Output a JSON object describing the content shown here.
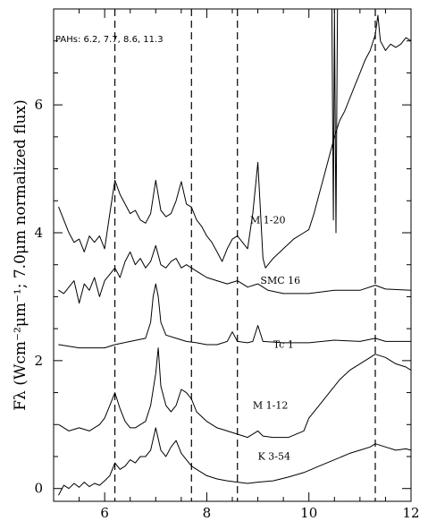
{
  "chart_data": {
    "type": "line",
    "title": "",
    "xlabel": "",
    "ylabel": "Fλ (Wcm⁻²μm⁻¹; 7.0μm normalized flux)",
    "xlim": [
      5.0,
      12.0
    ],
    "ylim": [
      -0.2,
      7.5
    ],
    "x_ticks": [
      6,
      8,
      10,
      12
    ],
    "y_ticks": [
      0,
      2,
      4,
      6
    ],
    "grid": false,
    "annotation": "PAHs: 6.2, 7.7, 8.6, 11.3",
    "vlines": [
      6.2,
      7.7,
      8.6,
      11.3
    ],
    "series": [
      {
        "name": "M 1-20",
        "label_pos": [
          8.85,
          4.15
        ],
        "points": [
          [
            5.1,
            4.4
          ],
          [
            5.2,
            4.2
          ],
          [
            5.3,
            4.0
          ],
          [
            5.4,
            3.85
          ],
          [
            5.5,
            3.9
          ],
          [
            5.6,
            3.7
          ],
          [
            5.7,
            3.95
          ],
          [
            5.8,
            3.85
          ],
          [
            5.9,
            3.95
          ],
          [
            6.0,
            3.75
          ],
          [
            6.1,
            4.3
          ],
          [
            6.2,
            4.82
          ],
          [
            6.3,
            4.6
          ],
          [
            6.4,
            4.45
          ],
          [
            6.5,
            4.3
          ],
          [
            6.6,
            4.35
          ],
          [
            6.7,
            4.2
          ],
          [
            6.8,
            4.15
          ],
          [
            6.9,
            4.3
          ],
          [
            7.0,
            4.82
          ],
          [
            7.1,
            4.35
          ],
          [
            7.2,
            4.25
          ],
          [
            7.3,
            4.3
          ],
          [
            7.4,
            4.5
          ],
          [
            7.5,
            4.8
          ],
          [
            7.6,
            4.45
          ],
          [
            7.7,
            4.4
          ],
          [
            7.8,
            4.2
          ],
          [
            7.9,
            4.1
          ],
          [
            8.0,
            3.95
          ],
          [
            8.1,
            3.85
          ],
          [
            8.2,
            3.7
          ],
          [
            8.3,
            3.55
          ],
          [
            8.4,
            3.75
          ],
          [
            8.5,
            3.9
          ],
          [
            8.6,
            3.95
          ],
          [
            8.7,
            3.85
          ],
          [
            8.8,
            3.75
          ],
          [
            8.9,
            4.3
          ],
          [
            9.0,
            5.1
          ],
          [
            9.1,
            3.6
          ],
          [
            9.15,
            3.45
          ],
          [
            9.3,
            3.6
          ],
          [
            9.5,
            3.75
          ],
          [
            9.7,
            3.9
          ],
          [
            9.9,
            4.0
          ],
          [
            10.0,
            4.05
          ],
          [
            10.1,
            4.3
          ],
          [
            10.2,
            4.6
          ],
          [
            10.3,
            4.9
          ],
          [
            10.4,
            5.2
          ],
          [
            10.5,
            5.5
          ],
          [
            10.6,
            5.75
          ],
          [
            10.7,
            5.9
          ],
          [
            10.8,
            6.1
          ],
          [
            10.9,
            6.3
          ],
          [
            11.0,
            6.5
          ],
          [
            11.1,
            6.7
          ],
          [
            11.2,
            6.85
          ],
          [
            11.3,
            7.1
          ],
          [
            11.35,
            7.4
          ],
          [
            11.4,
            7.0
          ],
          [
            11.5,
            6.85
          ],
          [
            11.6,
            6.95
          ],
          [
            11.7,
            6.9
          ],
          [
            11.8,
            6.95
          ],
          [
            11.9,
            7.05
          ],
          [
            12.0,
            7.0
          ]
        ]
      },
      {
        "name": "SMC 16",
        "label_pos": [
          9.05,
          3.2
        ],
        "points": [
          [
            5.1,
            3.1
          ],
          [
            5.2,
            3.05
          ],
          [
            5.3,
            3.15
          ],
          [
            5.4,
            3.25
          ],
          [
            5.5,
            2.9
          ],
          [
            5.6,
            3.2
          ],
          [
            5.7,
            3.1
          ],
          [
            5.8,
            3.3
          ],
          [
            5.9,
            3.0
          ],
          [
            6.0,
            3.25
          ],
          [
            6.1,
            3.35
          ],
          [
            6.2,
            3.45
          ],
          [
            6.3,
            3.3
          ],
          [
            6.4,
            3.55
          ],
          [
            6.5,
            3.7
          ],
          [
            6.6,
            3.5
          ],
          [
            6.7,
            3.6
          ],
          [
            6.8,
            3.45
          ],
          [
            6.9,
            3.55
          ],
          [
            7.0,
            3.8
          ],
          [
            7.1,
            3.5
          ],
          [
            7.2,
            3.45
          ],
          [
            7.3,
            3.55
          ],
          [
            7.4,
            3.6
          ],
          [
            7.5,
            3.45
          ],
          [
            7.6,
            3.5
          ],
          [
            7.7,
            3.45
          ],
          [
            7.8,
            3.4
          ],
          [
            7.9,
            3.35
          ],
          [
            8.0,
            3.3
          ],
          [
            8.2,
            3.25
          ],
          [
            8.4,
            3.2
          ],
          [
            8.6,
            3.25
          ],
          [
            8.8,
            3.15
          ],
          [
            9.0,
            3.2
          ],
          [
            9.2,
            3.1
          ],
          [
            9.5,
            3.05
          ],
          [
            10.0,
            3.05
          ],
          [
            10.5,
            3.1
          ],
          [
            11.0,
            3.1
          ],
          [
            11.3,
            3.18
          ],
          [
            11.5,
            3.12
          ],
          [
            12.0,
            3.1
          ]
        ]
      },
      {
        "name": "Tc 1",
        "label_pos": [
          9.3,
          2.2
        ],
        "points": [
          [
            5.1,
            2.25
          ],
          [
            5.5,
            2.2
          ],
          [
            6.0,
            2.2
          ],
          [
            6.2,
            2.25
          ],
          [
            6.5,
            2.3
          ],
          [
            6.8,
            2.35
          ],
          [
            6.9,
            2.6
          ],
          [
            6.95,
            3.0
          ],
          [
            7.0,
            3.2
          ],
          [
            7.05,
            3.0
          ],
          [
            7.1,
            2.6
          ],
          [
            7.2,
            2.4
          ],
          [
            7.4,
            2.35
          ],
          [
            7.6,
            2.3
          ],
          [
            7.8,
            2.28
          ],
          [
            8.0,
            2.25
          ],
          [
            8.2,
            2.25
          ],
          [
            8.4,
            2.3
          ],
          [
            8.5,
            2.45
          ],
          [
            8.6,
            2.3
          ],
          [
            8.8,
            2.28
          ],
          [
            8.9,
            2.3
          ],
          [
            9.0,
            2.55
          ],
          [
            9.1,
            2.3
          ],
          [
            9.5,
            2.28
          ],
          [
            10.0,
            2.28
          ],
          [
            10.5,
            2.32
          ],
          [
            11.0,
            2.3
          ],
          [
            11.3,
            2.35
          ],
          [
            11.5,
            2.3
          ],
          [
            12.0,
            2.3
          ]
        ]
      },
      {
        "name": "M 1-12",
        "label_pos": [
          8.9,
          1.25
        ],
        "points": [
          [
            5.1,
            1.0
          ],
          [
            5.3,
            0.9
          ],
          [
            5.5,
            0.95
          ],
          [
            5.7,
            0.9
          ],
          [
            5.9,
            1.0
          ],
          [
            6.0,
            1.1
          ],
          [
            6.1,
            1.3
          ],
          [
            6.2,
            1.5
          ],
          [
            6.3,
            1.25
          ],
          [
            6.4,
            1.05
          ],
          [
            6.5,
            0.95
          ],
          [
            6.6,
            0.95
          ],
          [
            6.7,
            1.0
          ],
          [
            6.8,
            1.05
          ],
          [
            6.9,
            1.3
          ],
          [
            7.0,
            1.8
          ],
          [
            7.05,
            2.2
          ],
          [
            7.1,
            1.6
          ],
          [
            7.2,
            1.3
          ],
          [
            7.3,
            1.2
          ],
          [
            7.4,
            1.3
          ],
          [
            7.5,
            1.55
          ],
          [
            7.6,
            1.5
          ],
          [
            7.7,
            1.4
          ],
          [
            7.8,
            1.2
          ],
          [
            8.0,
            1.05
          ],
          [
            8.2,
            0.95
          ],
          [
            8.4,
            0.9
          ],
          [
            8.6,
            0.85
          ],
          [
            8.8,
            0.8
          ],
          [
            9.0,
            0.9
          ],
          [
            9.1,
            0.82
          ],
          [
            9.3,
            0.8
          ],
          [
            9.6,
            0.8
          ],
          [
            9.9,
            0.9
          ],
          [
            10.0,
            1.1
          ],
          [
            10.2,
            1.3
          ],
          [
            10.4,
            1.5
          ],
          [
            10.6,
            1.7
          ],
          [
            10.8,
            1.85
          ],
          [
            11.0,
            1.95
          ],
          [
            11.2,
            2.05
          ],
          [
            11.3,
            2.1
          ],
          [
            11.5,
            2.05
          ],
          [
            11.7,
            1.95
          ],
          [
            11.9,
            1.9
          ],
          [
            12.0,
            1.85
          ]
        ]
      },
      {
        "name": "K 3-54",
        "label_pos": [
          9.0,
          0.45
        ],
        "points": [
          [
            5.1,
            -0.1
          ],
          [
            5.2,
            0.05
          ],
          [
            5.3,
            0.0
          ],
          [
            5.4,
            0.08
          ],
          [
            5.5,
            0.02
          ],
          [
            5.6,
            0.1
          ],
          [
            5.7,
            0.03
          ],
          [
            5.8,
            0.08
          ],
          [
            5.9,
            0.05
          ],
          [
            6.0,
            0.12
          ],
          [
            6.1,
            0.2
          ],
          [
            6.2,
            0.4
          ],
          [
            6.3,
            0.3
          ],
          [
            6.4,
            0.35
          ],
          [
            6.5,
            0.45
          ],
          [
            6.6,
            0.4
          ],
          [
            6.7,
            0.5
          ],
          [
            6.8,
            0.5
          ],
          [
            6.9,
            0.6
          ],
          [
            7.0,
            0.95
          ],
          [
            7.1,
            0.6
          ],
          [
            7.2,
            0.5
          ],
          [
            7.3,
            0.65
          ],
          [
            7.4,
            0.75
          ],
          [
            7.5,
            0.55
          ],
          [
            7.6,
            0.45
          ],
          [
            7.7,
            0.35
          ],
          [
            7.8,
            0.3
          ],
          [
            8.0,
            0.2
          ],
          [
            8.2,
            0.15
          ],
          [
            8.4,
            0.12
          ],
          [
            8.6,
            0.1
          ],
          [
            8.8,
            0.08
          ],
          [
            9.0,
            0.1
          ],
          [
            9.3,
            0.12
          ],
          [
            9.6,
            0.18
          ],
          [
            9.9,
            0.25
          ],
          [
            10.2,
            0.35
          ],
          [
            10.5,
            0.45
          ],
          [
            10.8,
            0.55
          ],
          [
            11.0,
            0.6
          ],
          [
            11.2,
            0.65
          ],
          [
            11.3,
            0.7
          ],
          [
            11.5,
            0.65
          ],
          [
            11.7,
            0.6
          ],
          [
            11.9,
            0.62
          ],
          [
            12.0,
            0.6
          ]
        ]
      },
      {
        "name": "",
        "label_pos": null,
        "points": [
          [
            10.45,
            7.5
          ],
          [
            10.48,
            4.2
          ],
          [
            10.5,
            7.5
          ],
          [
            10.53,
            4.0
          ],
          [
            10.56,
            7.5
          ]
        ]
      }
    ]
  }
}
